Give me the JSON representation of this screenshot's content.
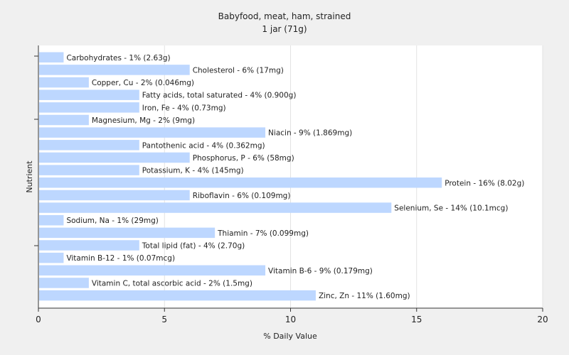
{
  "chart_data": {
    "type": "bar",
    "orientation": "horizontal",
    "title": "Babyfood, meat, ham, strained",
    "subtitle": "1 jar (71g)",
    "xlabel": "% Daily Value",
    "ylabel": "Nutrient",
    "xlim": [
      0,
      20
    ],
    "xticks": [
      0,
      5,
      10,
      15,
      20
    ],
    "grid": true,
    "bar_color": "#bdd7ff",
    "categories": [
      "Carbohydrates",
      "Cholesterol",
      "Copper, Cu",
      "Fatty acids, total saturated",
      "Iron, Fe",
      "Magnesium, Mg",
      "Niacin",
      "Pantothenic acid",
      "Phosphorus, P",
      "Potassium, K",
      "Protein",
      "Riboflavin",
      "Selenium, Se",
      "Sodium, Na",
      "Thiamin",
      "Total lipid (fat)",
      "Vitamin B-12",
      "Vitamin B-6",
      "Vitamin C, total ascorbic acid",
      "Zinc, Zn"
    ],
    "values": [
      1,
      6,
      2,
      4,
      4,
      2,
      9,
      4,
      6,
      4,
      16,
      6,
      14,
      1,
      7,
      4,
      1,
      9,
      2,
      11
    ],
    "labels": [
      "Carbohydrates - 1% (2.63g)",
      "Cholesterol - 6% (17mg)",
      "Copper, Cu - 2% (0.046mg)",
      "Fatty acids, total saturated - 4% (0.900g)",
      "Iron, Fe - 4% (0.73mg)",
      "Magnesium, Mg - 2% (9mg)",
      "Niacin - 9% (1.869mg)",
      "Pantothenic acid - 4% (0.362mg)",
      "Phosphorus, P - 6% (58mg)",
      "Potassium, K - 4% (145mg)",
      "Protein - 16% (8.02g)",
      "Riboflavin - 6% (0.109mg)",
      "Selenium, Se - 14% (10.1mcg)",
      "Sodium, Na - 1% (29mg)",
      "Thiamin - 7% (0.099mg)",
      "Total lipid (fat) - 4% (2.70g)",
      "Vitamin B-12 - 1% (0.07mcg)",
      "Vitamin B-6 - 9% (0.179mg)",
      "Vitamin C, total ascorbic acid - 2% (1.5mg)",
      "Zinc, Zn - 11% (1.60mg)"
    ]
  }
}
